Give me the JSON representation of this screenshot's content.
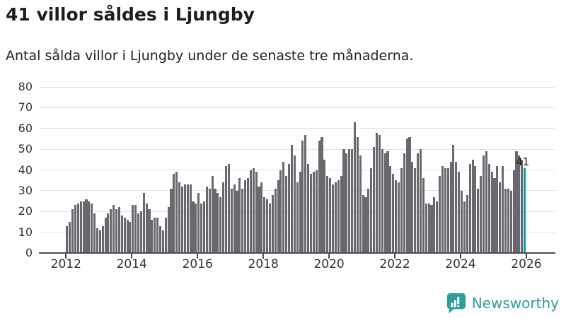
{
  "header": {
    "title": "41 villor såldes i Ljungby",
    "subtitle": "Antal sålda villor i Ljungby under de senaste tre månaderna."
  },
  "chart_data": {
    "type": "bar",
    "title": "41 villor såldes i Ljungby",
    "subtitle": "Antal sålda villor i Ljungby under de senaste tre månaderna.",
    "ylabel": "",
    "xlabel": "",
    "ylim": [
      0,
      80
    ],
    "yticks": [
      0,
      10,
      20,
      30,
      40,
      50,
      60,
      70,
      80
    ],
    "xtick_labels": [
      "2012",
      "2014",
      "2016",
      "2018",
      "2020",
      "2022",
      "2024",
      "2026"
    ],
    "grid": true,
    "bar_color": "#68686e",
    "highlight_color": "#00a49b",
    "x_start": "2012-01",
    "series": [
      {
        "year": 2012,
        "monthly": [
          13,
          15,
          21,
          23,
          24,
          25,
          25,
          26,
          25,
          24,
          19,
          12
        ]
      },
      {
        "year": 2013,
        "monthly": [
          11,
          13,
          17,
          19,
          21,
          23,
          21,
          22,
          18,
          17,
          16,
          15
        ]
      },
      {
        "year": 2014,
        "monthly": [
          23,
          23,
          19,
          20,
          29,
          24,
          21,
          16,
          17,
          17,
          13,
          11
        ]
      },
      {
        "year": 2015,
        "monthly": [
          17,
          22,
          31,
          38,
          39,
          34,
          32,
          33,
          33,
          33,
          25,
          24
        ]
      },
      {
        "year": 2016,
        "monthly": [
          29,
          24,
          25,
          32,
          31,
          37,
          31,
          29,
          27,
          34,
          42,
          43
        ]
      },
      {
        "year": 2017,
        "monthly": [
          31,
          33,
          30,
          36,
          31,
          35,
          36,
          40,
          41,
          39,
          32,
          34
        ]
      },
      {
        "year": 2018,
        "monthly": [
          27,
          26,
          24,
          28,
          31,
          35,
          40,
          44,
          37,
          43,
          52,
          47
        ]
      },
      {
        "year": 2019,
        "monthly": [
          34,
          39,
          54,
          57,
          43,
          38,
          39,
          40,
          54,
          56,
          45,
          37
        ]
      },
      {
        "year": 2020,
        "monthly": [
          36,
          33,
          34,
          35,
          37,
          50,
          48,
          50,
          50,
          63,
          56,
          47
        ]
      },
      {
        "year": 2021,
        "monthly": [
          28,
          27,
          31,
          41,
          51,
          58,
          57,
          50,
          48,
          49,
          42,
          38
        ]
      },
      {
        "year": 2022,
        "monthly": [
          35,
          34,
          41,
          48,
          55,
          56,
          44,
          41,
          48,
          50,
          36,
          24
        ]
      },
      {
        "year": 2023,
        "monthly": [
          24,
          23,
          27,
          25,
          37,
          42,
          41,
          41,
          44,
          52,
          44,
          39
        ]
      },
      {
        "year": 2024,
        "monthly": [
          30,
          25,
          28,
          43,
          45,
          42,
          31,
          37,
          47,
          49,
          43,
          39
        ]
      },
      {
        "year": 2025,
        "monthly": [
          36,
          42,
          34,
          42,
          31,
          31,
          30,
          40,
          49,
          47,
          45,
          41
        ]
      }
    ],
    "highlight": {
      "label": "41",
      "value": 41,
      "position": "last"
    },
    "legend": null
  },
  "footer": {
    "brand": "Newsworthy",
    "brand_color": "#2e9e99"
  }
}
